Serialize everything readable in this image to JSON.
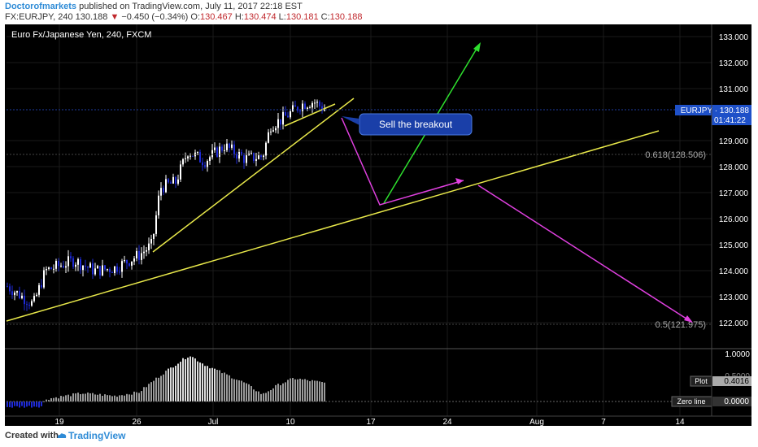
{
  "header": {
    "author": "Doctorofmarkets",
    "published_text": " published on TradingView.com, July 11, 2017 22:18 EST",
    "symbol_prefix": "FX:EURJPY, 240  130.188 ",
    "change_arrow": "▼",
    "change": " −0.450 (−0.34%) ",
    "o_label": "O:",
    "o_value": "130.467",
    "h_label": " H:",
    "h_value": "130.474",
    "l_label": " L:",
    "l_value": "130.181",
    "c_label": " C:",
    "c_value": "130.188"
  },
  "chart": {
    "title": "Euro Fx/Japanese Yen, 240, FXCM",
    "price_ticks": [
      "133.000",
      "132.000",
      "131.000",
      "129.000",
      "128.000",
      "127.000",
      "126.000",
      "125.000",
      "124.000",
      "123.000",
      "122.000"
    ],
    "price_label_symbol": "EURJPY · 130.188",
    "countdown": "01:41:22",
    "fib_618": "0.618(128.506)",
    "fib_05": "0.5(121.975)",
    "annotation": "Sell the breakout",
    "x_ticks": [
      "19",
      "26",
      "Jul",
      "10",
      "17",
      "24",
      "Aug",
      "7",
      "14"
    ],
    "osc_ticks": [
      "1.0000",
      "0.5000"
    ],
    "osc_plot_label": "Plot",
    "osc_plot_value": "0.4016",
    "osc_zero_label": "Zero line",
    "osc_zero_value": "0.0000",
    "colors": {
      "up": "#ffffff",
      "down": "#1e2ad6",
      "trend": "#e8e84a",
      "magenta": "#e040e0",
      "green": "#2ee02e",
      "price_tag": "#1e50c8"
    }
  },
  "chart_data": {
    "type": "candlestick",
    "title": "Euro Fx/Japanese Yen, 240, FXCM",
    "x_ticks": [
      "19",
      "26",
      "Jul",
      "10",
      "17",
      "24",
      "Aug",
      "7",
      "14"
    ],
    "y_range": [
      121.5,
      133.4
    ],
    "last_price": 130.188,
    "close_path": [
      {
        "x": "Jun 15",
        "y": 123.4
      },
      {
        "x": "Jun 17",
        "y": 122.7
      },
      {
        "x": "Jun 19",
        "y": 124.0
      },
      {
        "x": "Jun 21",
        "y": 124.4
      },
      {
        "x": "Jun 23",
        "y": 124.0
      },
      {
        "x": "Jun 26",
        "y": 124.1
      },
      {
        "x": "Jun 27",
        "y": 125.0
      },
      {
        "x": "Jun 28",
        "y": 127.2
      },
      {
        "x": "Jun 29",
        "y": 128.6
      },
      {
        "x": "Jul 3",
        "y": 128.2
      },
      {
        "x": "Jul 5",
        "y": 128.8
      },
      {
        "x": "Jul 7",
        "y": 128.4
      },
      {
        "x": "Jul 8",
        "y": 129.8
      },
      {
        "x": "Jul 10",
        "y": 130.4
      },
      {
        "x": "Jul 11",
        "y": 130.188
      }
    ],
    "fib_levels": [
      {
        "label": "0.618",
        "value": 128.506
      },
      {
        "label": "0.5",
        "value": 121.975
      }
    ],
    "oscillator": {
      "plot": 0.4016,
      "zero_line": 0.0,
      "y_range": [
        -0.2,
        1.0
      ]
    }
  }
}
